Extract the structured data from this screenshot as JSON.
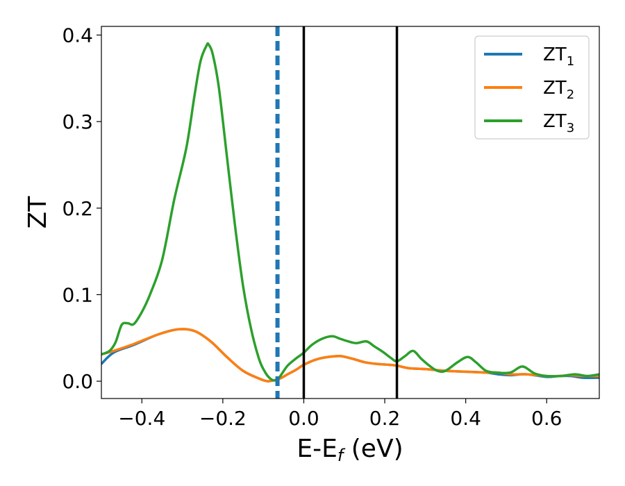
{
  "chart_data": {
    "type": "line",
    "xlabel": {
      "main": "E-E",
      "sub": "f",
      "rest": " (eV)"
    },
    "ylabel": "ZT",
    "xlim": [
      -0.5,
      0.73
    ],
    "ylim": [
      -0.02,
      0.41
    ],
    "xticks": [
      {
        "value": -0.4,
        "label": "−0.4"
      },
      {
        "value": -0.2,
        "label": "−0.2"
      },
      {
        "value": 0.0,
        "label": "0.0"
      },
      {
        "value": 0.2,
        "label": "0.2"
      },
      {
        "value": 0.4,
        "label": "0.4"
      },
      {
        "value": 0.6,
        "label": "0.6"
      }
    ],
    "yticks": [
      {
        "value": 0.0,
        "label": "0.0"
      },
      {
        "value": 0.1,
        "label": "0.1"
      },
      {
        "value": 0.2,
        "label": "0.2"
      },
      {
        "value": 0.3,
        "label": "0.3"
      },
      {
        "value": 0.4,
        "label": "0.4"
      }
    ],
    "grid": false,
    "legend_position": "top-right",
    "series": [
      {
        "name": "ZT",
        "sub": "1",
        "color": "#1f77b4",
        "x": [
          -0.5,
          -0.47,
          -0.42,
          -0.36,
          -0.31,
          -0.27,
          -0.23,
          -0.19,
          -0.15,
          -0.11,
          -0.09,
          -0.075,
          -0.065,
          -0.055,
          -0.04,
          -0.02,
          0.0,
          0.03,
          0.06,
          0.09,
          0.12,
          0.15,
          0.18,
          0.21,
          0.23,
          0.26,
          0.3,
          0.35,
          0.4,
          0.45,
          0.48,
          0.51,
          0.55,
          0.6,
          0.63,
          0.66,
          0.69,
          0.73
        ],
        "y": [
          0.02,
          0.033,
          0.042,
          0.054,
          0.06,
          0.058,
          0.046,
          0.028,
          0.012,
          0.003,
          0.0,
          0.001,
          0.002,
          0.004,
          0.008,
          0.013,
          0.019,
          0.025,
          0.028,
          0.029,
          0.026,
          0.022,
          0.02,
          0.019,
          0.018,
          0.015,
          0.014,
          0.012,
          0.011,
          0.01,
          0.008,
          0.007,
          0.008,
          0.005,
          0.006,
          0.006,
          0.004,
          0.004
        ]
      },
      {
        "name": "ZT",
        "sub": "2",
        "color": "#ff7f0e",
        "x": [
          -0.5,
          -0.47,
          -0.42,
          -0.36,
          -0.31,
          -0.27,
          -0.23,
          -0.19,
          -0.15,
          -0.11,
          -0.09,
          -0.075,
          -0.065,
          -0.055,
          -0.04,
          -0.02,
          0.0,
          0.03,
          0.06,
          0.09,
          0.12,
          0.15,
          0.18,
          0.21,
          0.23,
          0.26,
          0.3,
          0.35,
          0.4,
          0.45,
          0.48,
          0.51,
          0.55,
          0.6,
          0.63,
          0.66,
          0.69,
          0.73
        ],
        "y": [
          0.031,
          0.035,
          0.043,
          0.054,
          0.06,
          0.058,
          0.046,
          0.028,
          0.012,
          0.003,
          0.0,
          0.001,
          0.002,
          0.004,
          0.008,
          0.013,
          0.019,
          0.025,
          0.028,
          0.029,
          0.026,
          0.022,
          0.02,
          0.019,
          0.018,
          0.015,
          0.014,
          0.012,
          0.011,
          0.01,
          0.01,
          0.008,
          0.008,
          0.006,
          0.006,
          0.007,
          0.006,
          0.006
        ]
      },
      {
        "name": "ZT",
        "sub": "3",
        "color": "#2ca02c",
        "x": [
          -0.5,
          -0.48,
          -0.465,
          -0.45,
          -0.435,
          -0.42,
          -0.4,
          -0.38,
          -0.35,
          -0.32,
          -0.29,
          -0.27,
          -0.255,
          -0.24,
          -0.235,
          -0.225,
          -0.21,
          -0.19,
          -0.17,
          -0.15,
          -0.13,
          -0.11,
          -0.095,
          -0.085,
          -0.075,
          -0.065,
          -0.055,
          -0.04,
          -0.02,
          0.0,
          0.02,
          0.045,
          0.07,
          0.09,
          0.11,
          0.13,
          0.155,
          0.175,
          0.195,
          0.215,
          0.23,
          0.25,
          0.27,
          0.29,
          0.31,
          0.33,
          0.35,
          0.38,
          0.405,
          0.425,
          0.45,
          0.475,
          0.51,
          0.54,
          0.57,
          0.6,
          0.635,
          0.67,
          0.7,
          0.73
        ],
        "y": [
          0.031,
          0.035,
          0.045,
          0.065,
          0.067,
          0.066,
          0.08,
          0.1,
          0.14,
          0.21,
          0.27,
          0.33,
          0.37,
          0.388,
          0.389,
          0.378,
          0.34,
          0.26,
          0.18,
          0.11,
          0.06,
          0.025,
          0.01,
          0.004,
          0.001,
          0.002,
          0.008,
          0.018,
          0.026,
          0.033,
          0.042,
          0.049,
          0.052,
          0.049,
          0.046,
          0.044,
          0.046,
          0.04,
          0.034,
          0.027,
          0.023,
          0.029,
          0.035,
          0.026,
          0.018,
          0.012,
          0.012,
          0.022,
          0.028,
          0.022,
          0.012,
          0.01,
          0.01,
          0.017,
          0.009,
          0.006,
          0.006,
          0.008,
          0.006,
          0.008
        ]
      }
    ],
    "vlines": [
      {
        "x": -0.065,
        "style": "dashed",
        "color": "#1f77b4"
      },
      {
        "x": 0.0,
        "style": "solid",
        "color": "#000000"
      },
      {
        "x": 0.23,
        "style": "solid",
        "color": "#000000"
      }
    ]
  }
}
